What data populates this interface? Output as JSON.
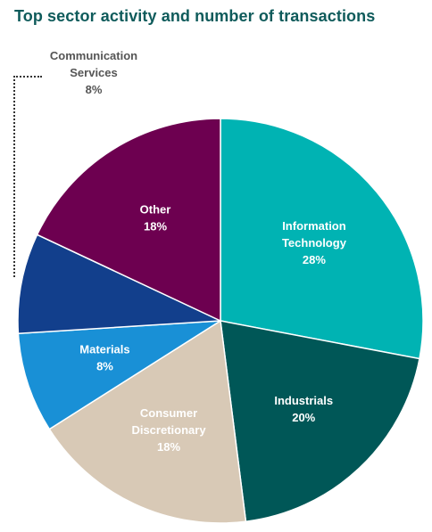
{
  "chart_data": {
    "type": "pie",
    "title": "Top sector activity and number of transactions",
    "start_angle_deg": 0,
    "direction": "clockwise",
    "slices": [
      {
        "label": [
          "Information",
          "Technology"
        ],
        "value": 28,
        "display": "28%",
        "color": "#00b3b3",
        "label_color": "#ffffff"
      },
      {
        "label": [
          "Industrials"
        ],
        "value": 20,
        "display": "20%",
        "color": "#005757",
        "label_color": "#ffffff"
      },
      {
        "label": [
          "Consumer",
          "Discretionary"
        ],
        "value": 18,
        "display": "18%",
        "color": "#d8c9b6",
        "label_color": "#ffffff"
      },
      {
        "label": [
          "Materials"
        ],
        "value": 8,
        "display": "8%",
        "color": "#1990d6",
        "label_color": "#ffffff"
      },
      {
        "label": [
          "Communication",
          "Services"
        ],
        "value": 8,
        "display": "8%",
        "color": "#123f8c",
        "label_color": "#555555",
        "external": true
      },
      {
        "label": [
          "Other"
        ],
        "value": 18,
        "display": "18%",
        "color": "#6d0050",
        "label_color": "#ffffff"
      }
    ]
  }
}
